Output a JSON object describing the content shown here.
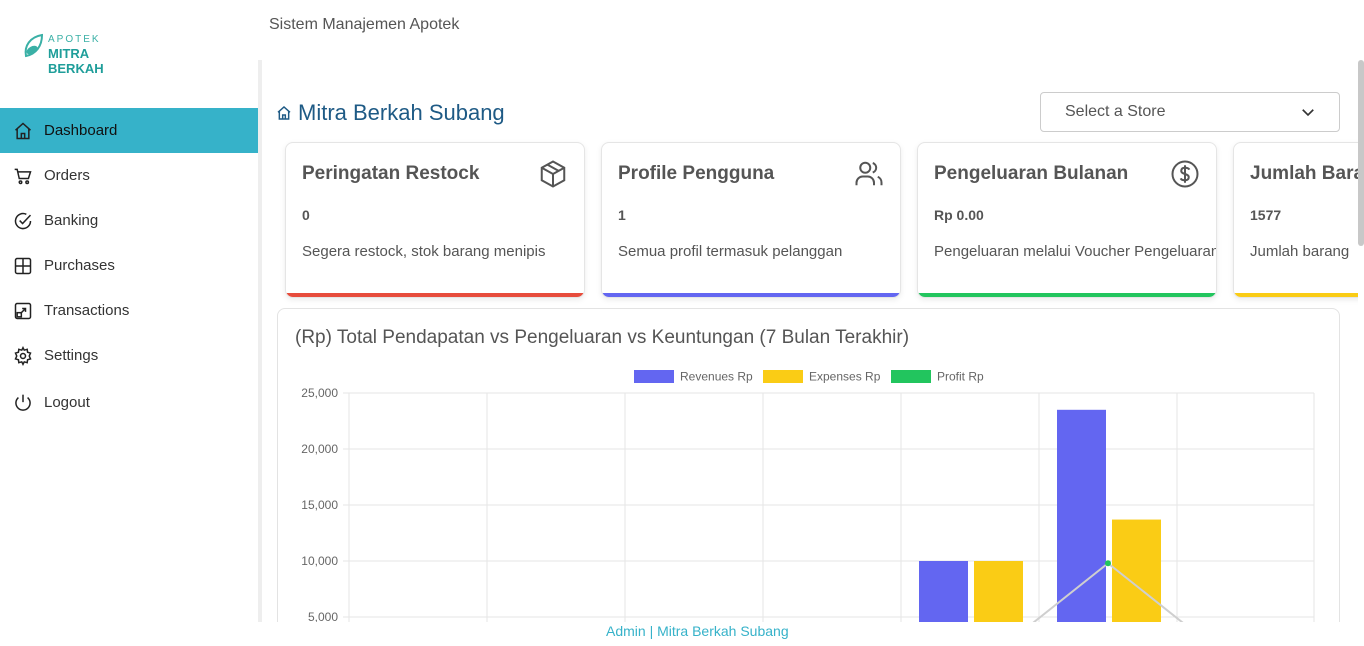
{
  "brand": {
    "line1": "APOTEK",
    "line2": "MITRA BERKAH"
  },
  "header": {
    "app_title": "Sistem Manajemen Apotek"
  },
  "sidebar": {
    "items": [
      {
        "label": "Dashboard",
        "icon": "home-icon",
        "active": true
      },
      {
        "label": "Orders",
        "icon": "cart-icon"
      },
      {
        "label": "Banking",
        "icon": "check-circle-icon"
      },
      {
        "label": "Purchases",
        "icon": "grid-icon"
      },
      {
        "label": "Transactions",
        "icon": "transfer-icon"
      },
      {
        "label": "Settings",
        "icon": "gear-icon"
      },
      {
        "label": "Logout",
        "icon": "power-icon"
      }
    ]
  },
  "main": {
    "title": "Mitra Berkah Subang",
    "store_select": {
      "placeholder": "Select a Store"
    },
    "cards": [
      {
        "title": "Peringatan Restock",
        "value": "0",
        "desc": "Segera restock, stok barang menipis",
        "icon": "box-icon",
        "accent": "#e74c3c"
      },
      {
        "title": "Profile Pengguna",
        "value": "1",
        "desc": "Semua profil termasuk pelanggan",
        "icon": "users-icon",
        "accent": "#6366f1"
      },
      {
        "title": "Pengeluaran Bulanan",
        "value": "Rp 0.00",
        "desc": "Pengeluaran melalui Voucher Pengeluaran",
        "icon": "dollar-icon",
        "accent": "#22c55e"
      },
      {
        "title": "Jumlah Barang",
        "value": "1577",
        "desc": "Jumlah barang",
        "icon": "",
        "accent": "#facc15"
      }
    ]
  },
  "chart_data": {
    "type": "bar",
    "title": "(Rp) Total Pendapatan vs Pengeluaran vs Keuntungan (7 Bulan Terakhir)",
    "ylim": [
      0,
      25000
    ],
    "yticks": [
      "25,000",
      "20,000",
      "15,000",
      "10,000",
      "5,000"
    ],
    "grid": true,
    "legend_position": "top",
    "series": [
      {
        "name": "Revenues Rp",
        "color": "#6366f1",
        "values": [
          0,
          0,
          0,
          0,
          10000,
          23500,
          0
        ]
      },
      {
        "name": "Expenses Rp",
        "color": "#facc15",
        "values": [
          0,
          0,
          0,
          0,
          10000,
          13700,
          0
        ]
      },
      {
        "name": "Profit Rp",
        "color": "#22c55e",
        "values": [
          0,
          0,
          0,
          0,
          0,
          9800,
          0
        ]
      }
    ]
  },
  "footer": {
    "text": "Admin | Mitra Berkah Subang"
  }
}
